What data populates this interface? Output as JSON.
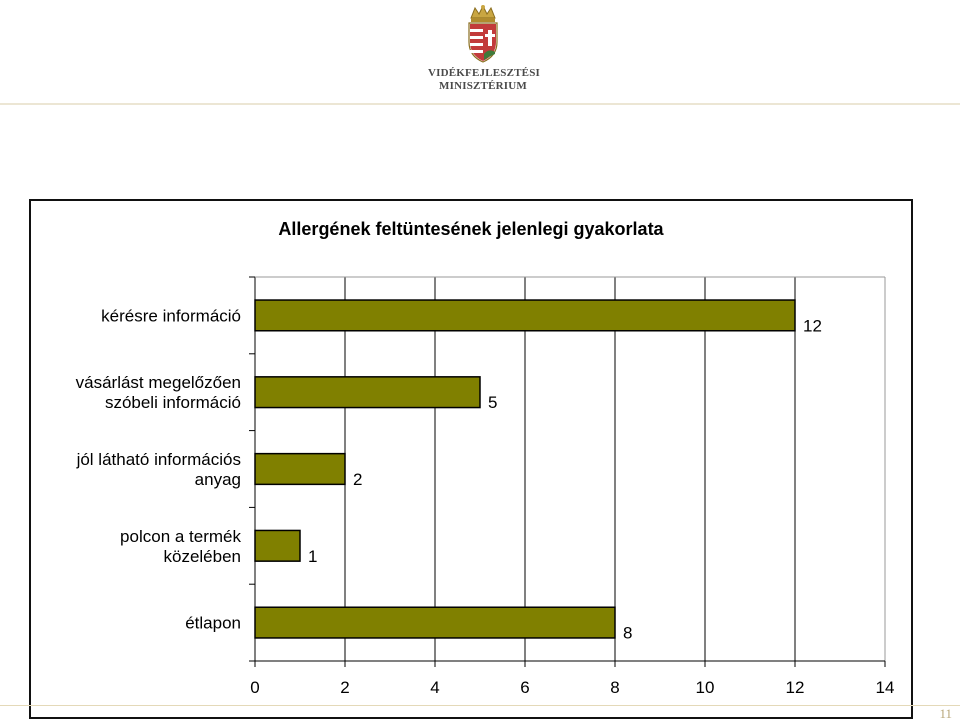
{
  "header": {
    "logo_line1": "VIDÉKFEJLESZTÉSI",
    "logo_line2": "MINISZTÉRIUM",
    "logo_icon": "hungarian-coat-of-arms-icon"
  },
  "footer": {
    "page_number": "11"
  },
  "colors": {
    "bar_fill": "#808000",
    "bar_stroke": "#000000",
    "grid": "#000000",
    "accent_rule": "#e4d9b8"
  },
  "chart_data": {
    "type": "bar",
    "orientation": "horizontal",
    "title": "Allergének feltüntesének jelenlegi gyakorlata",
    "categories": [
      [
        "kérésre információ"
      ],
      [
        "vásárlást megelőzően",
        "szóbeli információ"
      ],
      [
        "jól látható információs",
        "anyag"
      ],
      [
        "polcon a termék",
        "közelében"
      ],
      [
        "étlapon"
      ]
    ],
    "values": [
      12,
      5,
      2,
      1,
      8
    ],
    "data_labels": [
      "12",
      "5",
      "2",
      "1",
      "8"
    ],
    "xlim": [
      0,
      14
    ],
    "xticks": [
      0,
      2,
      4,
      6,
      8,
      10,
      12,
      14
    ],
    "grid": true,
    "legend": false,
    "xlabel": "",
    "ylabel": ""
  }
}
